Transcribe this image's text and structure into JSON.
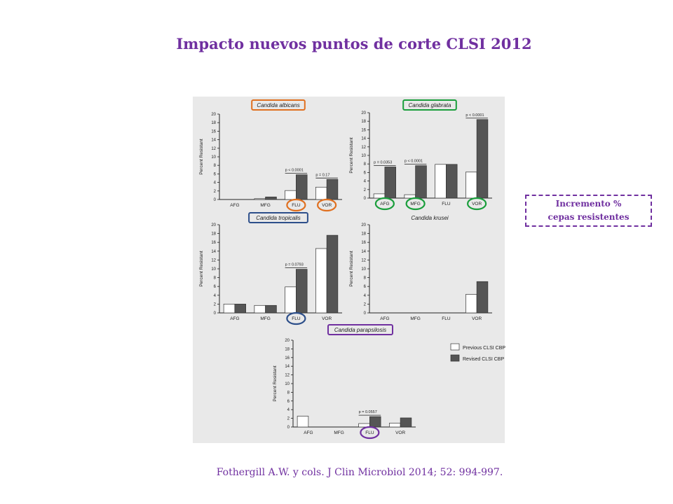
{
  "slide": {
    "title": "Impacto nuevos puntos de corte CLSI 2012",
    "callout_line1": "Incremento %",
    "callout_line2": "cepas resistentes",
    "citation": "Fothergill A.W. y cols. J Clin Microbiol 2014; 52: 994-997.",
    "colors": {
      "accent": "#7030a0",
      "previous_bar": "#ffffff",
      "revised_bar": "#555555"
    }
  },
  "chart_data": [
    {
      "type": "bar",
      "title": "Candida albicans",
      "title_box_color": "#e07020",
      "ylabel": "Percent Resistant",
      "ylim": [
        0,
        20
      ],
      "yticks": [
        "0",
        "2",
        "4",
        "6",
        "8",
        "10",
        "12",
        "14",
        "16",
        "18",
        "20"
      ],
      "categories": [
        "AFG",
        "MFG",
        "FLU",
        "VOR"
      ],
      "series": [
        {
          "name": "Previous CLSI CBP",
          "values": [
            0,
            0.2,
            2.1,
            2.9
          ]
        },
        {
          "name": "Revised CLSI CBP",
          "values": [
            0,
            0.6,
            5.8,
            4.7
          ]
        }
      ],
      "pvalues": [
        null,
        null,
        "p < 0.0001",
        "p = 0.17"
      ],
      "circled": {
        "FLU": "#e07020",
        "VOR": "#e07020"
      }
    },
    {
      "type": "bar",
      "title": "Candida glabrata",
      "title_box_color": "#1a9e3c",
      "ylabel": "Percent Resistant",
      "ylim": [
        0,
        20
      ],
      "yticks": [
        "0",
        "2",
        "4",
        "6",
        "8",
        "10",
        "12",
        "14",
        "16",
        "18",
        "20"
      ],
      "categories": [
        "AFG",
        "MFG",
        "FLU",
        "VOR"
      ],
      "series": [
        {
          "name": "Previous CLSI CBP",
          "values": [
            1.0,
            0.8,
            7.9,
            6.1
          ]
        },
        {
          "name": "Revised CLSI CBP",
          "values": [
            7.3,
            7.6,
            7.9,
            18.4
          ]
        }
      ],
      "pvalues": [
        "p = 0.0353",
        "p < 0.0001",
        null,
        "p < 0.0001"
      ],
      "circled": {
        "AFG": "#1a9e3c",
        "MFG": "#1a9e3c",
        "VOR": "#1a9e3c"
      }
    },
    {
      "type": "bar",
      "title": "Candida tropicalis",
      "title_box_color": "#2d4f8a",
      "ylabel": "Percent Resistant",
      "ylim": [
        0,
        20
      ],
      "yticks": [
        "0",
        "2",
        "4",
        "6",
        "8",
        "10",
        "12",
        "14",
        "16",
        "18",
        "20"
      ],
      "categories": [
        "AFG",
        "MFG",
        "FLU",
        "VOR"
      ],
      "series": [
        {
          "name": "Previous CLSI CBP",
          "values": [
            2.0,
            1.7,
            5.9,
            14.6
          ]
        },
        {
          "name": "Revised CLSI CBP",
          "values": [
            2.0,
            1.7,
            9.9,
            17.6
          ]
        }
      ],
      "pvalues": [
        null,
        null,
        "p = 0.0793",
        null
      ],
      "circled": {
        "FLU": "#2d4f8a"
      }
    },
    {
      "type": "bar",
      "title": "Candida krusei",
      "title_box_color": null,
      "ylabel": "Percent Resistant",
      "ylim": [
        0,
        20
      ],
      "yticks": [
        "0",
        "2",
        "4",
        "6",
        "8",
        "10",
        "12",
        "14",
        "16",
        "18",
        "20"
      ],
      "categories": [
        "AFG",
        "MFG",
        "FLU",
        "VOR"
      ],
      "series": [
        {
          "name": "Previous CLSI CBP",
          "values": [
            0,
            0,
            0,
            4.2
          ]
        },
        {
          "name": "Revised CLSI CBP",
          "values": [
            0,
            0,
            0,
            7.1
          ]
        }
      ],
      "pvalues": [
        null,
        null,
        null,
        null
      ],
      "circled": {}
    },
    {
      "type": "bar",
      "title": "Candida parapsilosis",
      "title_box_color": "#7030a0",
      "ylabel": "Percent Resistant",
      "ylim": [
        0,
        20
      ],
      "yticks": [
        "0",
        "2",
        "4",
        "6",
        "8",
        "10",
        "12",
        "14",
        "16",
        "18",
        "20"
      ],
      "categories": [
        "AFG",
        "MFG",
        "FLU",
        "VOR"
      ],
      "series": [
        {
          "name": "Previous CLSI CBP",
          "values": [
            2.5,
            0,
            0.8,
            0.9
          ]
        },
        {
          "name": "Revised CLSI CBP",
          "values": [
            0,
            0,
            2.4,
            2.1
          ]
        }
      ],
      "pvalues": [
        null,
        null,
        "p = 0.0557",
        null
      ],
      "circled": {
        "FLU": "#7030a0"
      },
      "legend": [
        "Previous CLSI CBP",
        "Revised CLSI CBP"
      ]
    }
  ]
}
